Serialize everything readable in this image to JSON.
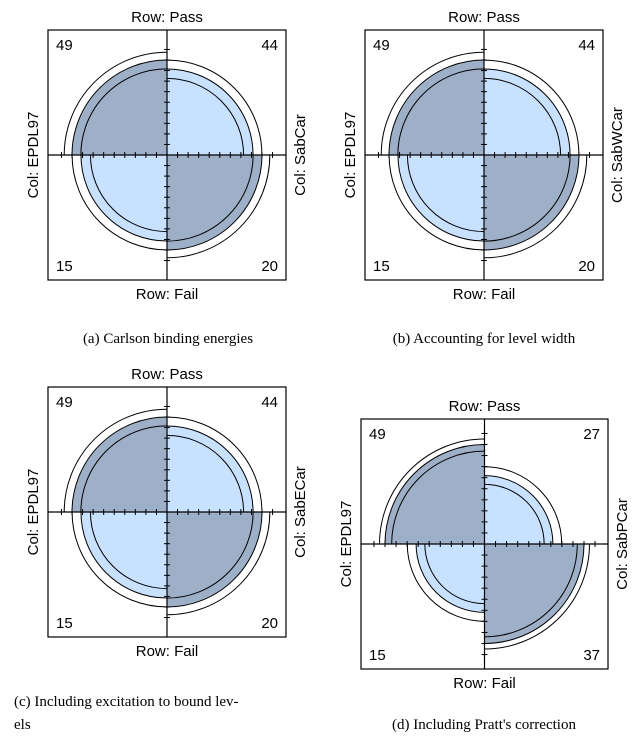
{
  "chart_data": [
    {
      "type": "fourfold",
      "row_top": "Row: Pass",
      "row_bottom": "Row: Fail",
      "col_left": "Col: EPDL97",
      "col_right": "Col: SabCar",
      "counts": {
        "top_left": 49,
        "top_right": 44,
        "bottom_left": 15,
        "bottom_right": 20
      },
      "caption": [
        "(a) Carlson binding energies"
      ]
    },
    {
      "type": "fourfold",
      "row_top": "Row: Pass",
      "row_bottom": "Row: Fail",
      "col_left": "Col: EPDL97",
      "col_right": "Col: SabWCar",
      "counts": {
        "top_left": 49,
        "top_right": 44,
        "bottom_left": 15,
        "bottom_right": 20
      },
      "caption": [
        "(b) Accounting for level width"
      ]
    },
    {
      "type": "fourfold",
      "row_top": "Row: Pass",
      "row_bottom": "Row: Fail",
      "col_left": "Col: EPDL97",
      "col_right": "Col: SabECar",
      "counts": {
        "top_left": 49,
        "top_right": 44,
        "bottom_left": 15,
        "bottom_right": 20
      },
      "caption": [
        "(c) Including excitation to bound lev-",
        "els"
      ]
    },
    {
      "type": "fourfold",
      "row_top": "Row: Pass",
      "row_bottom": "Row: Fail",
      "col_left": "Col: EPDL97",
      "col_right": "Col: SabPCar",
      "counts": {
        "top_left": 49,
        "top_right": 27,
        "bottom_left": 15,
        "bottom_right": 37
      },
      "caption": [
        "(d) Including Pratt's correction"
      ]
    }
  ],
  "colors": {
    "dark": "#9eb0c8",
    "light": "#c8e1ff",
    "stroke": "#000000"
  }
}
